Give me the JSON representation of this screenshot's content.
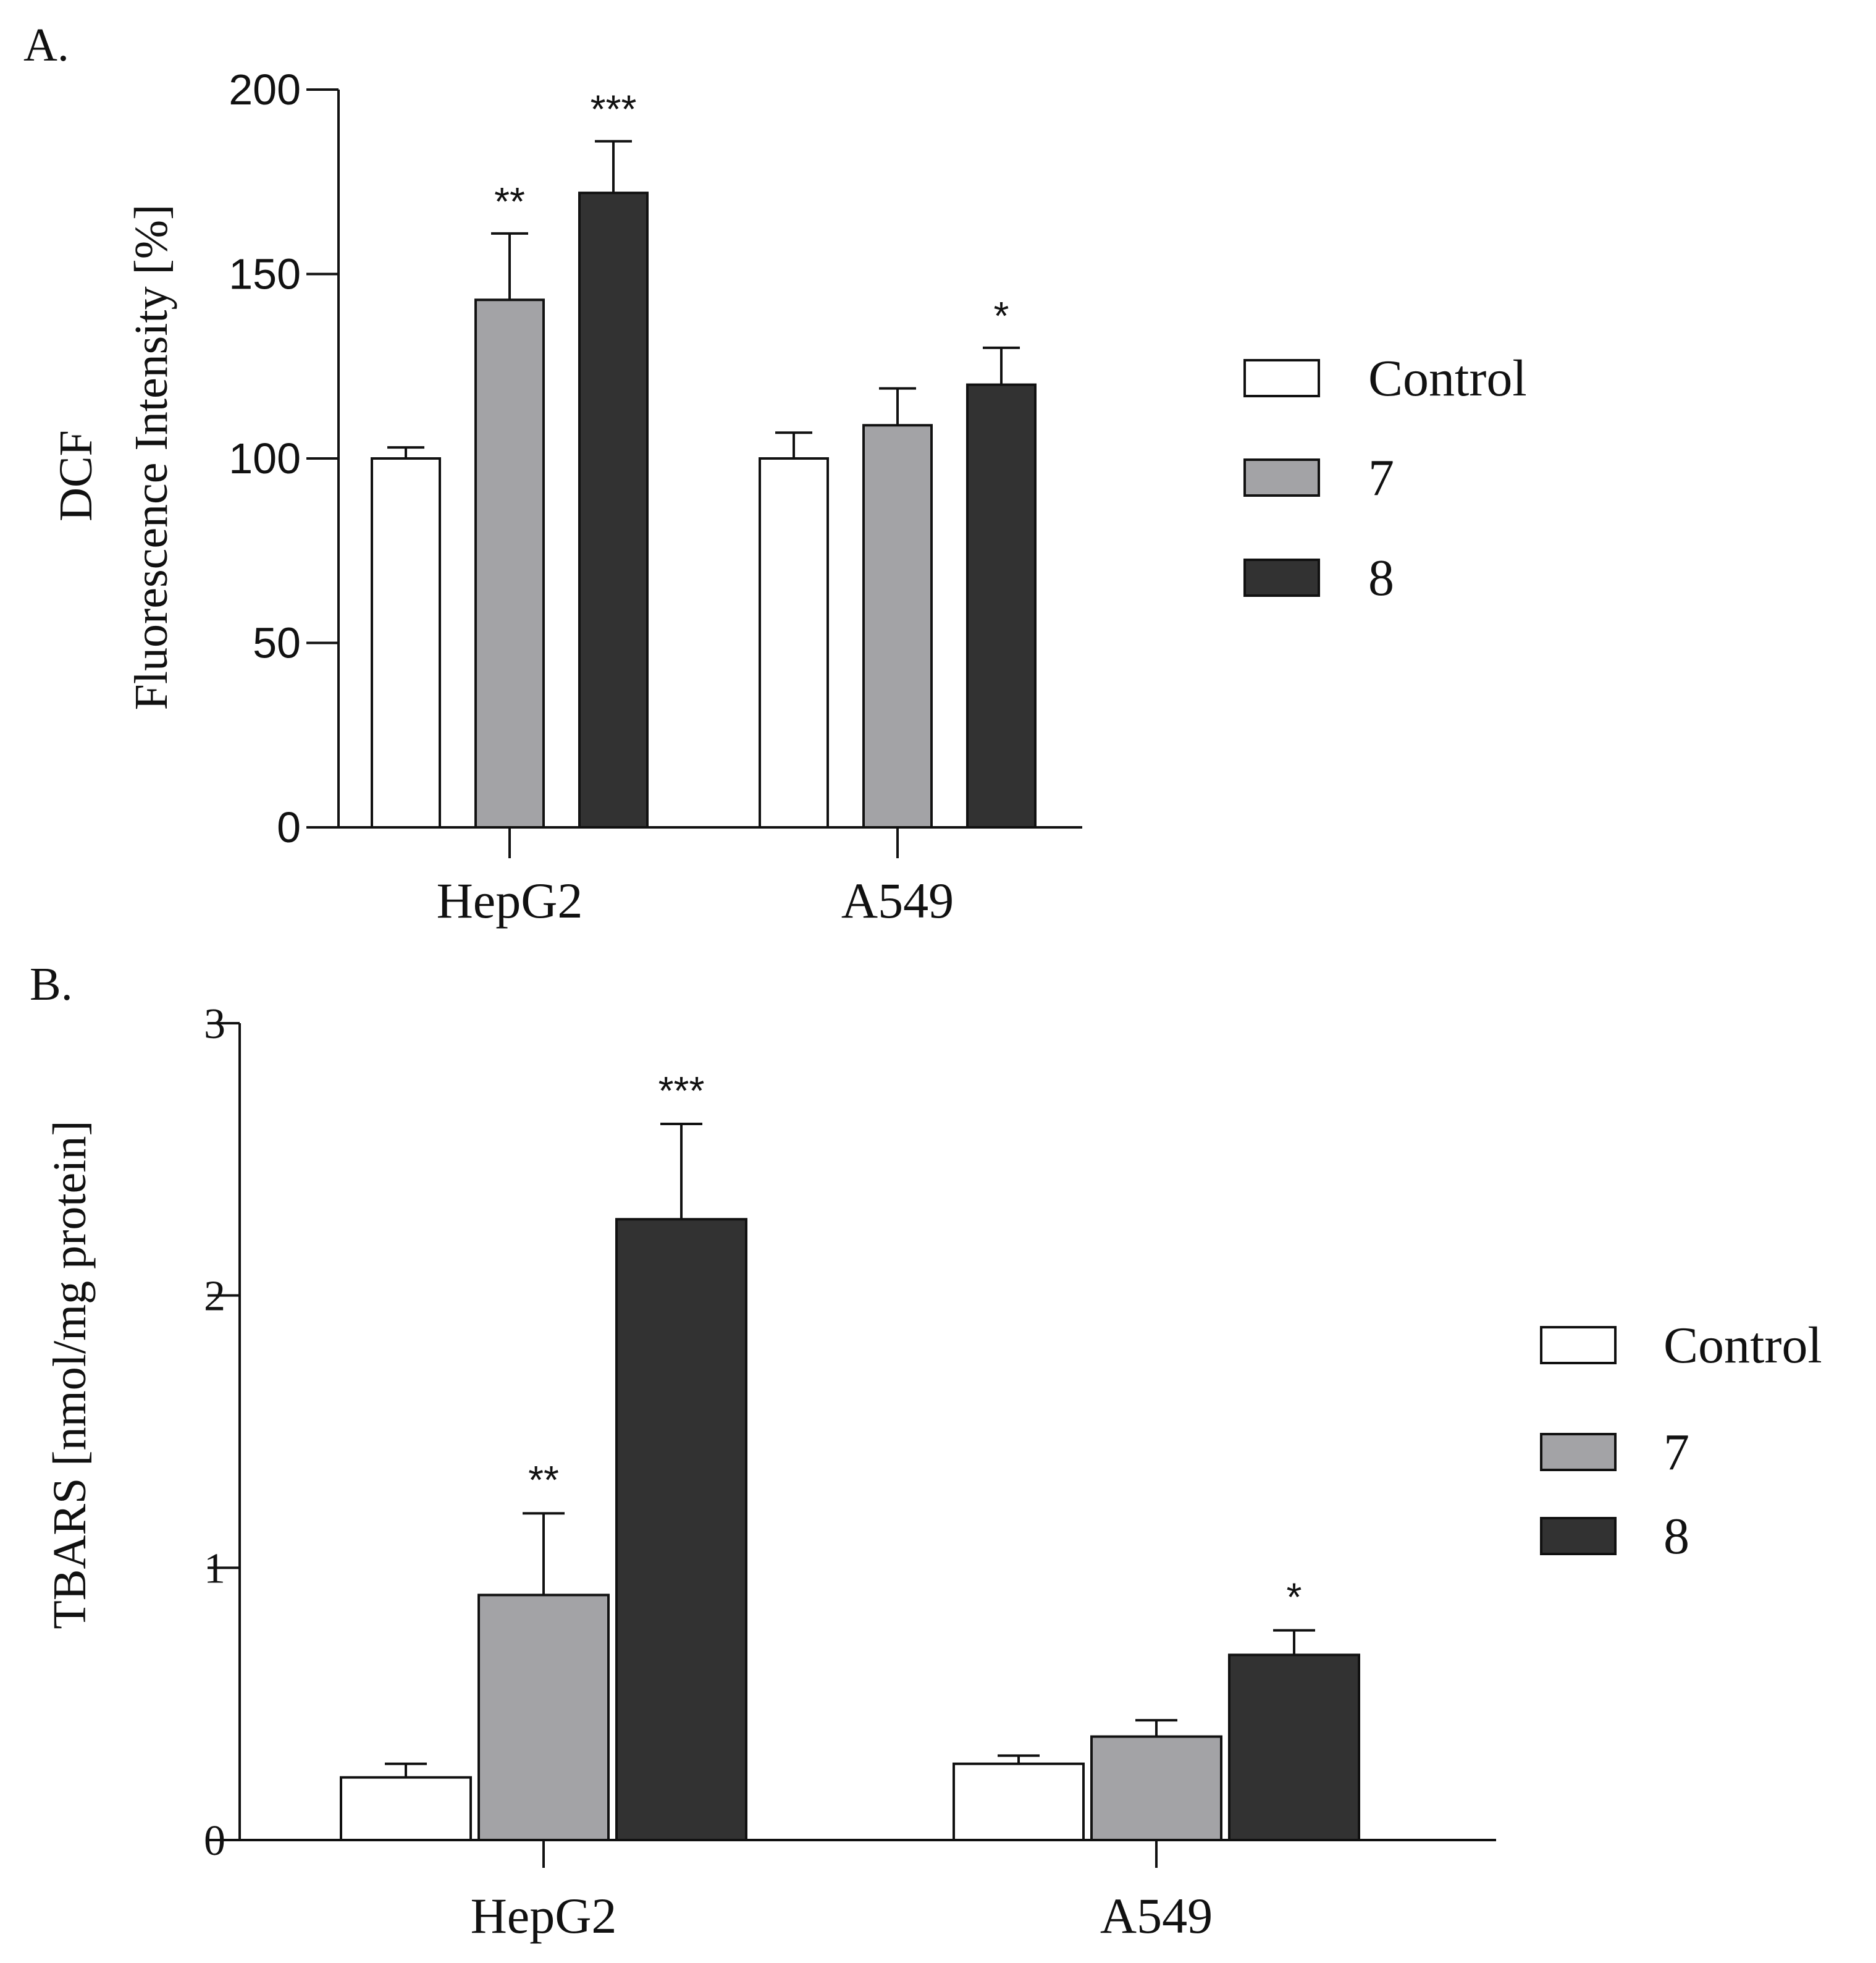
{
  "chart_data": [
    {
      "panel_label": "A.",
      "type": "bar",
      "ylabel": [
        "DCF",
        "Fluorescence Intensity [%]"
      ],
      "categories": [
        "HepG2",
        "A549"
      ],
      "ylim": [
        0,
        200
      ],
      "yticks": [
        0,
        50,
        100,
        150,
        200
      ],
      "ytick_labels": [
        "0",
        "50",
        "100",
        "150",
        "200"
      ],
      "series": [
        {
          "name": "Control",
          "color": "#ffffff",
          "values": [
            100,
            100
          ],
          "errors": [
            3,
            7
          ],
          "significance": [
            "",
            ""
          ]
        },
        {
          "name": "7",
          "color": "#a3a3a6",
          "values": [
            143,
            109
          ],
          "errors": [
            18,
            10
          ],
          "significance": [
            "**",
            ""
          ]
        },
        {
          "name": "8",
          "color": "#323232",
          "values": [
            172,
            120
          ],
          "errors": [
            14,
            10
          ],
          "significance": [
            "***",
            "*"
          ]
        }
      ],
      "legend": {
        "position": "right",
        "entries": [
          "Control",
          "7",
          "8"
        ]
      }
    },
    {
      "panel_label": "B.",
      "type": "bar",
      "ylabel": [
        "TBARS [nmol/mg protein]"
      ],
      "categories": [
        "HepG2",
        "A549"
      ],
      "ylim": [
        0,
        3
      ],
      "yticks": [
        0,
        1,
        2,
        3
      ],
      "ytick_labels": [
        "0",
        "1",
        "2",
        "3"
      ],
      "series": [
        {
          "name": "Control",
          "color": "#ffffff",
          "values": [
            0.23,
            0.28
          ],
          "errors": [
            0.05,
            0.03
          ],
          "significance": [
            "",
            ""
          ]
        },
        {
          "name": "7",
          "color": "#a3a3a6",
          "values": [
            0.9,
            0.38
          ],
          "errors": [
            0.3,
            0.06
          ],
          "significance": [
            "**",
            ""
          ]
        },
        {
          "name": "8",
          "color": "#323232",
          "values": [
            2.28,
            0.68
          ],
          "errors": [
            0.35,
            0.09
          ],
          "significance": [
            "***",
            "*"
          ]
        }
      ],
      "legend": {
        "position": "right",
        "entries": [
          "Control",
          "7",
          "8"
        ]
      }
    }
  ]
}
